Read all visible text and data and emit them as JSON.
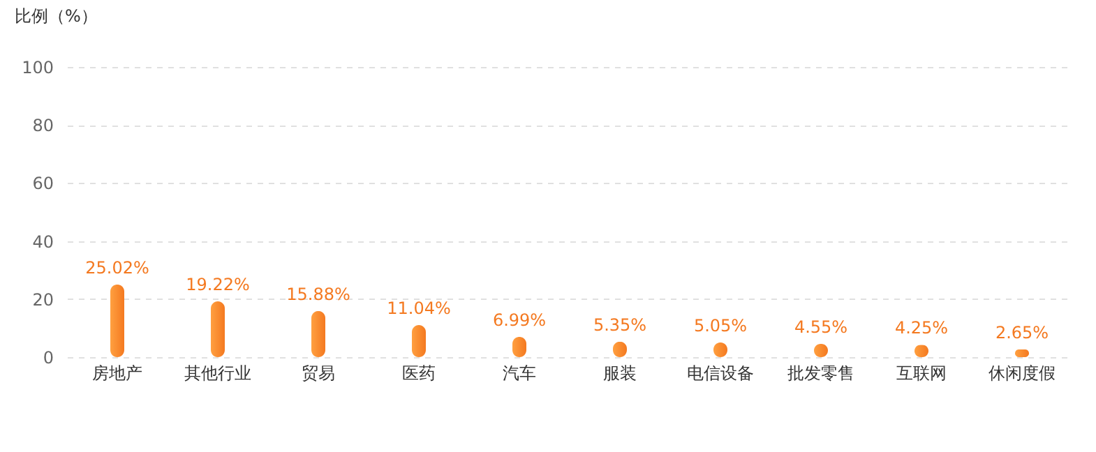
{
  "chart_data": {
    "type": "bar",
    "ylabel": "比例（%）",
    "categories": [
      "房地产",
      "其他行业",
      "贸易",
      "医药",
      "汽车",
      "服装",
      "电信设备",
      "批发零售",
      "互联网",
      "休闲度假"
    ],
    "values": [
      25.02,
      19.22,
      15.88,
      11.04,
      6.99,
      5.35,
      5.05,
      4.55,
      4.25,
      2.65
    ],
    "value_labels": [
      "25.02%",
      "19.22%",
      "15.88%",
      "11.04%",
      "6.99%",
      "5.35%",
      "5.05%",
      "4.55%",
      "4.25%",
      "2.65%"
    ],
    "color": "#f47920",
    "ylim": [
      0,
      100
    ],
    "yticks": [
      0,
      20,
      40,
      60,
      80,
      100
    ],
    "grid": "y"
  }
}
